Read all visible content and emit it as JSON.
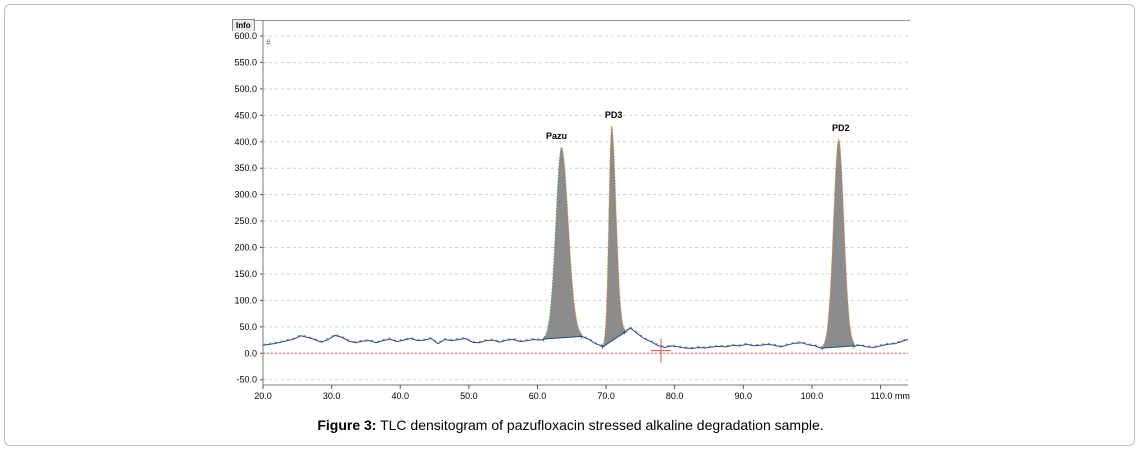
{
  "tab_label": "Info",
  "channel_marker": "#",
  "caption": {
    "label": "Figure 3:",
    "text": " TLC densitogram of pazufloxacin stressed alkaline degradation sample."
  },
  "chart_data": {
    "type": "area",
    "title": "",
    "xlabel": "",
    "ylabel": "",
    "x_unit": "mm",
    "xlim": [
      20,
      114
    ],
    "ylim": [
      -60,
      600
    ],
    "x_ticks": [
      20,
      30,
      40,
      50,
      60,
      70,
      80,
      90,
      100,
      110
    ],
    "x_tick_labels": [
      "20.0",
      "30.0",
      "40.0",
      "50.0",
      "60.0",
      "70.0",
      "80.0",
      "90.0",
      "100.0",
      "110.0 mm"
    ],
    "y_ticks": [
      -50,
      0,
      50,
      100,
      150,
      200,
      250,
      300,
      350,
      400,
      450,
      500,
      550,
      600
    ],
    "y_tick_labels": [
      "-50.0",
      "0.0",
      "50.0",
      "100.0",
      "150.0",
      "200.0",
      "250.0",
      "300.0",
      "350.0",
      "400.0",
      "450.0",
      "500.0",
      "550.0",
      "600.0"
    ],
    "grid": true,
    "baseline_y": 0,
    "peaks": [
      {
        "label": "Pazu",
        "x": 63.5,
        "height": 390,
        "start": 61.0,
        "end": 66.5
      },
      {
        "label": "PD3",
        "x": 70.8,
        "height": 430,
        "start": 69.6,
        "end": 72.8
      },
      {
        "label": "PD2",
        "x": 103.9,
        "height": 405,
        "start": 101.6,
        "end": 106.2
      }
    ],
    "baseline_trace": [
      [
        20.0,
        15
      ],
      [
        21.5,
        18
      ],
      [
        23.0,
        22
      ],
      [
        24.5,
        27
      ],
      [
        25.5,
        33
      ],
      [
        26.5,
        30
      ],
      [
        27.5,
        26
      ],
      [
        28.5,
        21
      ],
      [
        29.5,
        26
      ],
      [
        30.5,
        34
      ],
      [
        31.5,
        30
      ],
      [
        32.5,
        23
      ],
      [
        33.5,
        20
      ],
      [
        34.5,
        23
      ],
      [
        35.5,
        24
      ],
      [
        36.5,
        20
      ],
      [
        37.5,
        24
      ],
      [
        38.5,
        27
      ],
      [
        39.5,
        22
      ],
      [
        40.5,
        25
      ],
      [
        41.5,
        28
      ],
      [
        42.5,
        24
      ],
      [
        43.5,
        25
      ],
      [
        44.5,
        28
      ],
      [
        45.5,
        18
      ],
      [
        46.5,
        26
      ],
      [
        47.5,
        24
      ],
      [
        48.5,
        26
      ],
      [
        49.5,
        28
      ],
      [
        50.5,
        21
      ],
      [
        51.5,
        20
      ],
      [
        52.5,
        24
      ],
      [
        53.5,
        25
      ],
      [
        54.5,
        21
      ],
      [
        55.5,
        25
      ],
      [
        56.5,
        26
      ],
      [
        57.5,
        22
      ],
      [
        58.5,
        24
      ],
      [
        59.5,
        26
      ],
      [
        60.5,
        25
      ],
      [
        61.0,
        27
      ],
      [
        66.5,
        32
      ],
      [
        67.5,
        26
      ],
      [
        68.5,
        18
      ],
      [
        69.6,
        13
      ],
      [
        72.8,
        40
      ],
      [
        73.5,
        48
      ],
      [
        74.5,
        38
      ],
      [
        75.5,
        28
      ],
      [
        76.5,
        22
      ],
      [
        77.5,
        15
      ],
      [
        78.5,
        11
      ],
      [
        79.5,
        14
      ],
      [
        80.5,
        12
      ],
      [
        81.5,
        10
      ],
      [
        82.5,
        9
      ],
      [
        83.5,
        11
      ],
      [
        84.5,
        10
      ],
      [
        85.5,
        12
      ],
      [
        86.5,
        13
      ],
      [
        87.5,
        12
      ],
      [
        88.5,
        15
      ],
      [
        89.5,
        14
      ],
      [
        90.5,
        17
      ],
      [
        91.5,
        14
      ],
      [
        92.5,
        15
      ],
      [
        93.5,
        17
      ],
      [
        94.5,
        15
      ],
      [
        95.5,
        12
      ],
      [
        96.5,
        16
      ],
      [
        97.5,
        19
      ],
      [
        98.5,
        20
      ],
      [
        99.5,
        16
      ],
      [
        100.5,
        14
      ],
      [
        101.0,
        11
      ],
      [
        101.6,
        10
      ],
      [
        106.2,
        14
      ],
      [
        107.0,
        15
      ],
      [
        108.0,
        12
      ],
      [
        109.0,
        11
      ],
      [
        110.0,
        14
      ],
      [
        111.0,
        17
      ],
      [
        112.0,
        18
      ],
      [
        113.0,
        22
      ],
      [
        114.0,
        26
      ]
    ],
    "colors": {
      "peak_fill": "#8c8c8c",
      "trace": "#2f3f9f",
      "baseline": "#e06060",
      "grid": "#d0d0d0",
      "rise_edge": "#3cb043",
      "fall_edge": "#f08a24"
    }
  }
}
